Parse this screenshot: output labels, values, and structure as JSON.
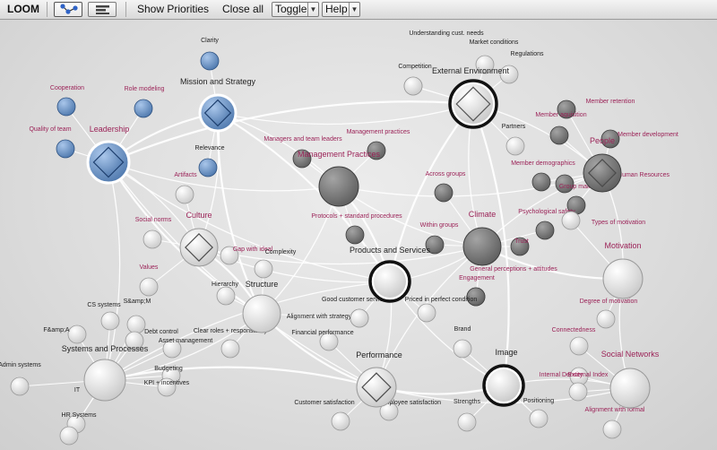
{
  "toolbar": {
    "app_name": "LOOM",
    "show_priorities": "Show Priorities",
    "close_all": "Close all",
    "toggle": "Toggle",
    "help": "Help"
  },
  "colors": {
    "blue": "#6b93c5",
    "dark": "#7d7d7d",
    "light": "#ececec",
    "label_magenta": "#9b2257",
    "edge": "#ffffff"
  },
  "hubs": [
    {
      "id": "mission",
      "title": "Mission and Strategy",
      "kind": "blue-diamond",
      "title_color": "dark"
    },
    {
      "id": "leadership",
      "title": "Leadership",
      "kind": "blue-diamond",
      "title_color": "magenta"
    },
    {
      "id": "external",
      "title": "External Environment",
      "kind": "ring-diamond",
      "title_color": "dark"
    },
    {
      "id": "mgmt",
      "title": "Management Practices",
      "kind": "dark",
      "title_color": "magenta"
    },
    {
      "id": "people",
      "title": "People",
      "kind": "dark-diamond",
      "title_color": "magenta"
    },
    {
      "id": "culture",
      "title": "Culture",
      "kind": "light-diamond",
      "title_color": "magenta"
    },
    {
      "id": "climate",
      "title": "Climate",
      "kind": "dark",
      "title_color": "magenta"
    },
    {
      "id": "products",
      "title": "Products and Services",
      "kind": "ring",
      "title_color": "dark"
    },
    {
      "id": "motivation",
      "title": "Motivation",
      "kind": "light",
      "title_color": "magenta"
    },
    {
      "id": "structure",
      "title": "Structure",
      "kind": "light",
      "title_color": "dark"
    },
    {
      "id": "systems",
      "title": "Systems and Processes",
      "kind": "light",
      "title_color": "dark"
    },
    {
      "id": "performance",
      "title": "Performance",
      "kind": "light-diamond",
      "title_color": "dark"
    },
    {
      "id": "image",
      "title": "Image",
      "kind": "ring",
      "title_color": "dark"
    },
    {
      "id": "social",
      "title": "Social Networks",
      "kind": "light",
      "title_color": "magenta"
    }
  ],
  "nodes": [
    {
      "label": "Clarity",
      "kind": "blue",
      "color": "dark"
    },
    {
      "label": "Relevance",
      "kind": "blue",
      "color": "dark"
    },
    {
      "label": "Cooperation",
      "kind": "blue",
      "color": "magenta"
    },
    {
      "label": "Role modeling",
      "kind": "blue",
      "color": "magenta"
    },
    {
      "label": "Quality of team",
      "kind": "blue",
      "color": "magenta"
    },
    {
      "label": "Artifacts",
      "kind": "light",
      "color": "magenta"
    },
    {
      "label": "Understanding cust. needs",
      "kind": "light",
      "color": "dark"
    },
    {
      "label": "Market conditions",
      "kind": "light",
      "color": "dark"
    },
    {
      "label": "Regulations",
      "kind": "light",
      "color": "dark"
    },
    {
      "label": "Competition",
      "kind": "light",
      "color": "dark"
    },
    {
      "label": "Partners",
      "kind": "light",
      "color": "dark"
    },
    {
      "label": "Managers and team leaders",
      "kind": "dark",
      "color": "magenta"
    },
    {
      "label": "Management practices",
      "kind": "dark",
      "color": "magenta"
    },
    {
      "label": "Protocols + standard procedures",
      "kind": "dark",
      "color": "magenta"
    },
    {
      "label": "Member retention",
      "kind": "dark",
      "color": "magenta"
    },
    {
      "label": "Member aquisition",
      "kind": "dark",
      "color": "magenta"
    },
    {
      "label": "Member development",
      "kind": "dark",
      "color": "magenta"
    },
    {
      "label": "Member demographics",
      "kind": "dark",
      "color": "magenta"
    },
    {
      "label": "Human Resources",
      "kind": "dark",
      "color": "magenta"
    },
    {
      "label": "Group makeup",
      "kind": "dark",
      "color": "magenta"
    },
    {
      "label": "Across groups",
      "kind": "dark",
      "color": "magenta"
    },
    {
      "label": "Within groups",
      "kind": "dark",
      "color": "magenta"
    },
    {
      "label": "Psychological safety",
      "kind": "dark",
      "color": "magenta"
    },
    {
      "label": "Trust",
      "kind": "dark",
      "color": "magenta"
    },
    {
      "label": "General perceptions + attitudes",
      "kind": "dark",
      "color": "magenta"
    },
    {
      "label": "Engagement",
      "kind": "dark",
      "color": "magenta"
    },
    {
      "label": "Social norms",
      "kind": "light",
      "color": "magenta"
    },
    {
      "label": "Gap with ideal",
      "kind": "light",
      "color": "magenta"
    },
    {
      "label": "Values",
      "kind": "light",
      "color": "magenta"
    },
    {
      "label": "Types of motivation",
      "kind": "light",
      "color": "magenta"
    },
    {
      "label": "Degree of motivation",
      "kind": "light",
      "color": "magenta"
    },
    {
      "label": "Complexity",
      "kind": "light",
      "color": "dark"
    },
    {
      "label": "Hierarchy",
      "kind": "light",
      "color": "dark"
    },
    {
      "label": "Clear roles + responsibility",
      "kind": "light",
      "color": "dark"
    },
    {
      "label": "Alignment with strategy",
      "kind": "light",
      "color": "dark"
    },
    {
      "label": "Good customer service",
      "kind": "light",
      "color": "dark"
    },
    {
      "label": "Priced in perfect condition",
      "kind": "light",
      "color": "dark"
    },
    {
      "label": "CS systems",
      "kind": "light",
      "color": "dark"
    },
    {
      "label": "S&amp;M",
      "kind": "light",
      "color": "dark"
    },
    {
      "label": "F&amp;A",
      "kind": "light",
      "color": "dark"
    },
    {
      "label": "Debt control",
      "kind": "light",
      "color": "dark"
    },
    {
      "label": "Asset management",
      "kind": "light",
      "color": "dark"
    },
    {
      "label": "Admin systems",
      "kind": "light",
      "color": "dark"
    },
    {
      "label": "Budgeting",
      "kind": "light",
      "color": "dark"
    },
    {
      "label": "KPI + incentives",
      "kind": "light",
      "color": "dark"
    },
    {
      "label": "IT",
      "kind": "light",
      "color": "dark"
    },
    {
      "label": "HR Systems",
      "kind": "light",
      "color": "dark"
    },
    {
      "label": "Financial performance",
      "kind": "light",
      "color": "dark"
    },
    {
      "label": "Customer satisfaction",
      "kind": "light",
      "color": "dark"
    },
    {
      "label": "Employee satisfaction",
      "kind": "light",
      "color": "dark"
    },
    {
      "label": "Brand",
      "kind": "light",
      "color": "dark"
    },
    {
      "label": "Strengths",
      "kind": "light",
      "color": "dark"
    },
    {
      "label": "Positioning",
      "kind": "light",
      "color": "dark"
    },
    {
      "label": "Connectedness",
      "kind": "light",
      "color": "magenta"
    },
    {
      "label": "Internal Density",
      "kind": "light",
      "color": "magenta"
    },
    {
      "label": "External Index",
      "kind": "light",
      "color": "magenta"
    },
    {
      "label": "Alignment with formal",
      "kind": "light",
      "color": "magenta"
    }
  ]
}
